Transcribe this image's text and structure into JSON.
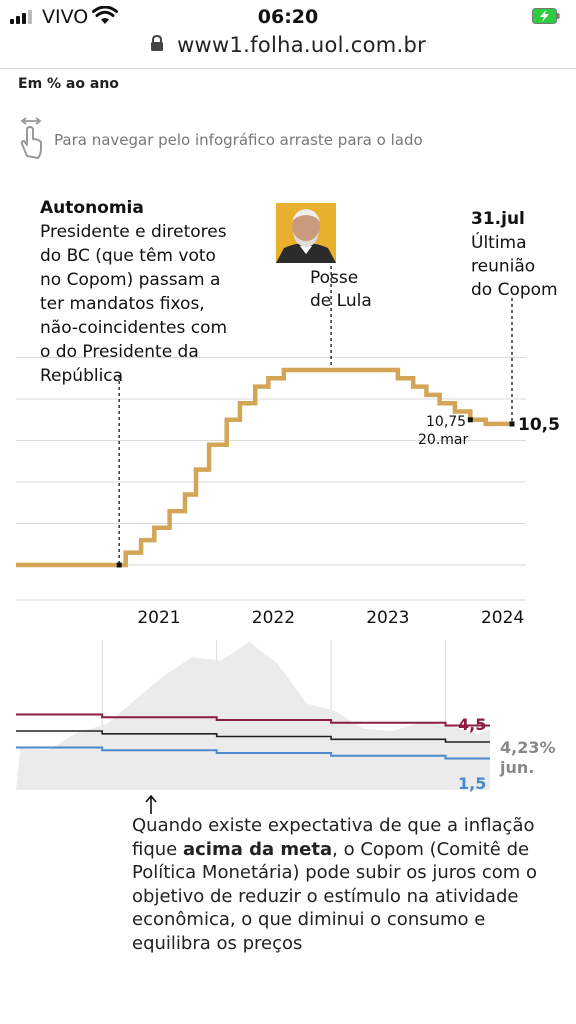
{
  "status_bar": {
    "carrier": "VIVO",
    "time": "06:20",
    "url": "www1.folha.uol.com.br",
    "icons": [
      "signal-icon",
      "wifi-icon",
      "battery-charging-icon",
      "lock-icon"
    ],
    "battery_color": "#2ecc40"
  },
  "page": {
    "unit_label": "Em % ao ano",
    "hint": "Para navegar pelo infográfico arraste para o lado",
    "hint_icon": "swipe-hand-icon"
  },
  "annotations": {
    "autonomia_title": "Autonomia",
    "autonomia_lines": [
      "Presidente e diretores",
      "do BC (que têm voto",
      "no Copom) passam a",
      "ter mandatos fixos,",
      "não-coincidentes com",
      "o do Presidente da",
      "República"
    ],
    "posse_lines": [
      "Posse",
      "de Lula"
    ],
    "lula_photo": "lula-portrait",
    "julho_title": "31.jul",
    "julho_lines": [
      "Última",
      "reunião",
      "do Copom"
    ],
    "mar_value": "10,75",
    "mar_date": "20.mar",
    "last_value": "10,5"
  },
  "inflation_labels": {
    "upper": "4,5",
    "lower": "1,5",
    "current": "4,23%",
    "current_date": "jun."
  },
  "note": {
    "part1": "Quando existe expectativa de que a inflação fique ",
    "bold": "acima da meta",
    "part2": ", o Copom (Comitê de Política Monetária) pode subir os juros com o objetivo de reduzir o estímulo na atividade econômica, o que diminui o consumo e equilibra os preços"
  },
  "colors": {
    "selic": "#d3a657",
    "upper_target": "#8c1d3e",
    "lower_target": "#4a89cc",
    "center_target": "#222222",
    "inflation_area": "#ebebeb",
    "grid": "#d9d9d9"
  },
  "chart_data": [
    {
      "type": "line",
      "series": [
        {
          "name": "Selic",
          "step": true,
          "x": [
            "2020-04-01",
            "2020-09-20",
            "2021-03-17",
            "2021-05-05",
            "2021-06-16",
            "2021-08-04",
            "2021-09-22",
            "2021-10-27",
            "2021-12-08",
            "2022-02-02",
            "2022-03-16",
            "2022-05-04",
            "2022-06-15",
            "2022-08-03",
            "2023-08-02",
            "2023-09-20",
            "2023-11-01",
            "2023-12-13",
            "2024-01-31",
            "2024-03-20",
            "2024-05-08",
            "2024-07-31"
          ],
          "values": [
            2,
            2,
            2.75,
            3.5,
            4.25,
            5.25,
            6.25,
            7.75,
            9.25,
            10.75,
            11.75,
            12.75,
            13.25,
            13.75,
            13.25,
            12.75,
            12.25,
            11.75,
            11.25,
            10.75,
            10.5,
            10.5
          ]
        }
      ],
      "x_ticks": [
        "2021",
        "2022",
        "2023",
        "2024"
      ],
      "annotations": [
        {
          "x": "2021-02-24",
          "label": "Autonomia"
        },
        {
          "x": "2023-01-01",
          "label": "Posse de Lula"
        },
        {
          "x": "2024-03-20",
          "value": 10.75,
          "label": "10,75 20.mar"
        },
        {
          "x": "2024-07-31",
          "value": 10.5,
          "label": "10,5"
        }
      ],
      "grid": true
    },
    {
      "type": "area",
      "series": [
        {
          "name": "inflation",
          "x": [
            "2020-04",
            "2020-07",
            "2020-10",
            "2021-01",
            "2021-04",
            "2021-07",
            "2021-10",
            "2022-01",
            "2022-04",
            "2022-07",
            "2022-10",
            "2023-01",
            "2023-04",
            "2023-07",
            "2023-10",
            "2024-01",
            "2024-04",
            "2024-06"
          ],
          "values": [
            2.4,
            2.3,
            3.9,
            4.6,
            6.8,
            9.0,
            10.7,
            10.4,
            12.1,
            10.1,
            6.5,
            5.8,
            4.2,
            4.0,
            4.8,
            4.5,
            3.7,
            4.23
          ]
        },
        {
          "name": "upper_target",
          "x": [
            "2020",
            "2021",
            "2022",
            "2023",
            "2024"
          ],
          "values": [
            5.5,
            5.25,
            5.0,
            4.75,
            4.5
          ]
        },
        {
          "name": "center_target",
          "x": [
            "2020",
            "2021",
            "2022",
            "2023",
            "2024"
          ],
          "values": [
            4.0,
            3.75,
            3.5,
            3.25,
            3.0
          ]
        },
        {
          "name": "lower_target",
          "x": [
            "2020",
            "2021",
            "2022",
            "2023",
            "2024"
          ],
          "values": [
            2.5,
            2.25,
            2.0,
            1.75,
            1.5
          ]
        }
      ],
      "labels": [
        "4,5",
        "1,5",
        "4,23% jun."
      ]
    }
  ]
}
